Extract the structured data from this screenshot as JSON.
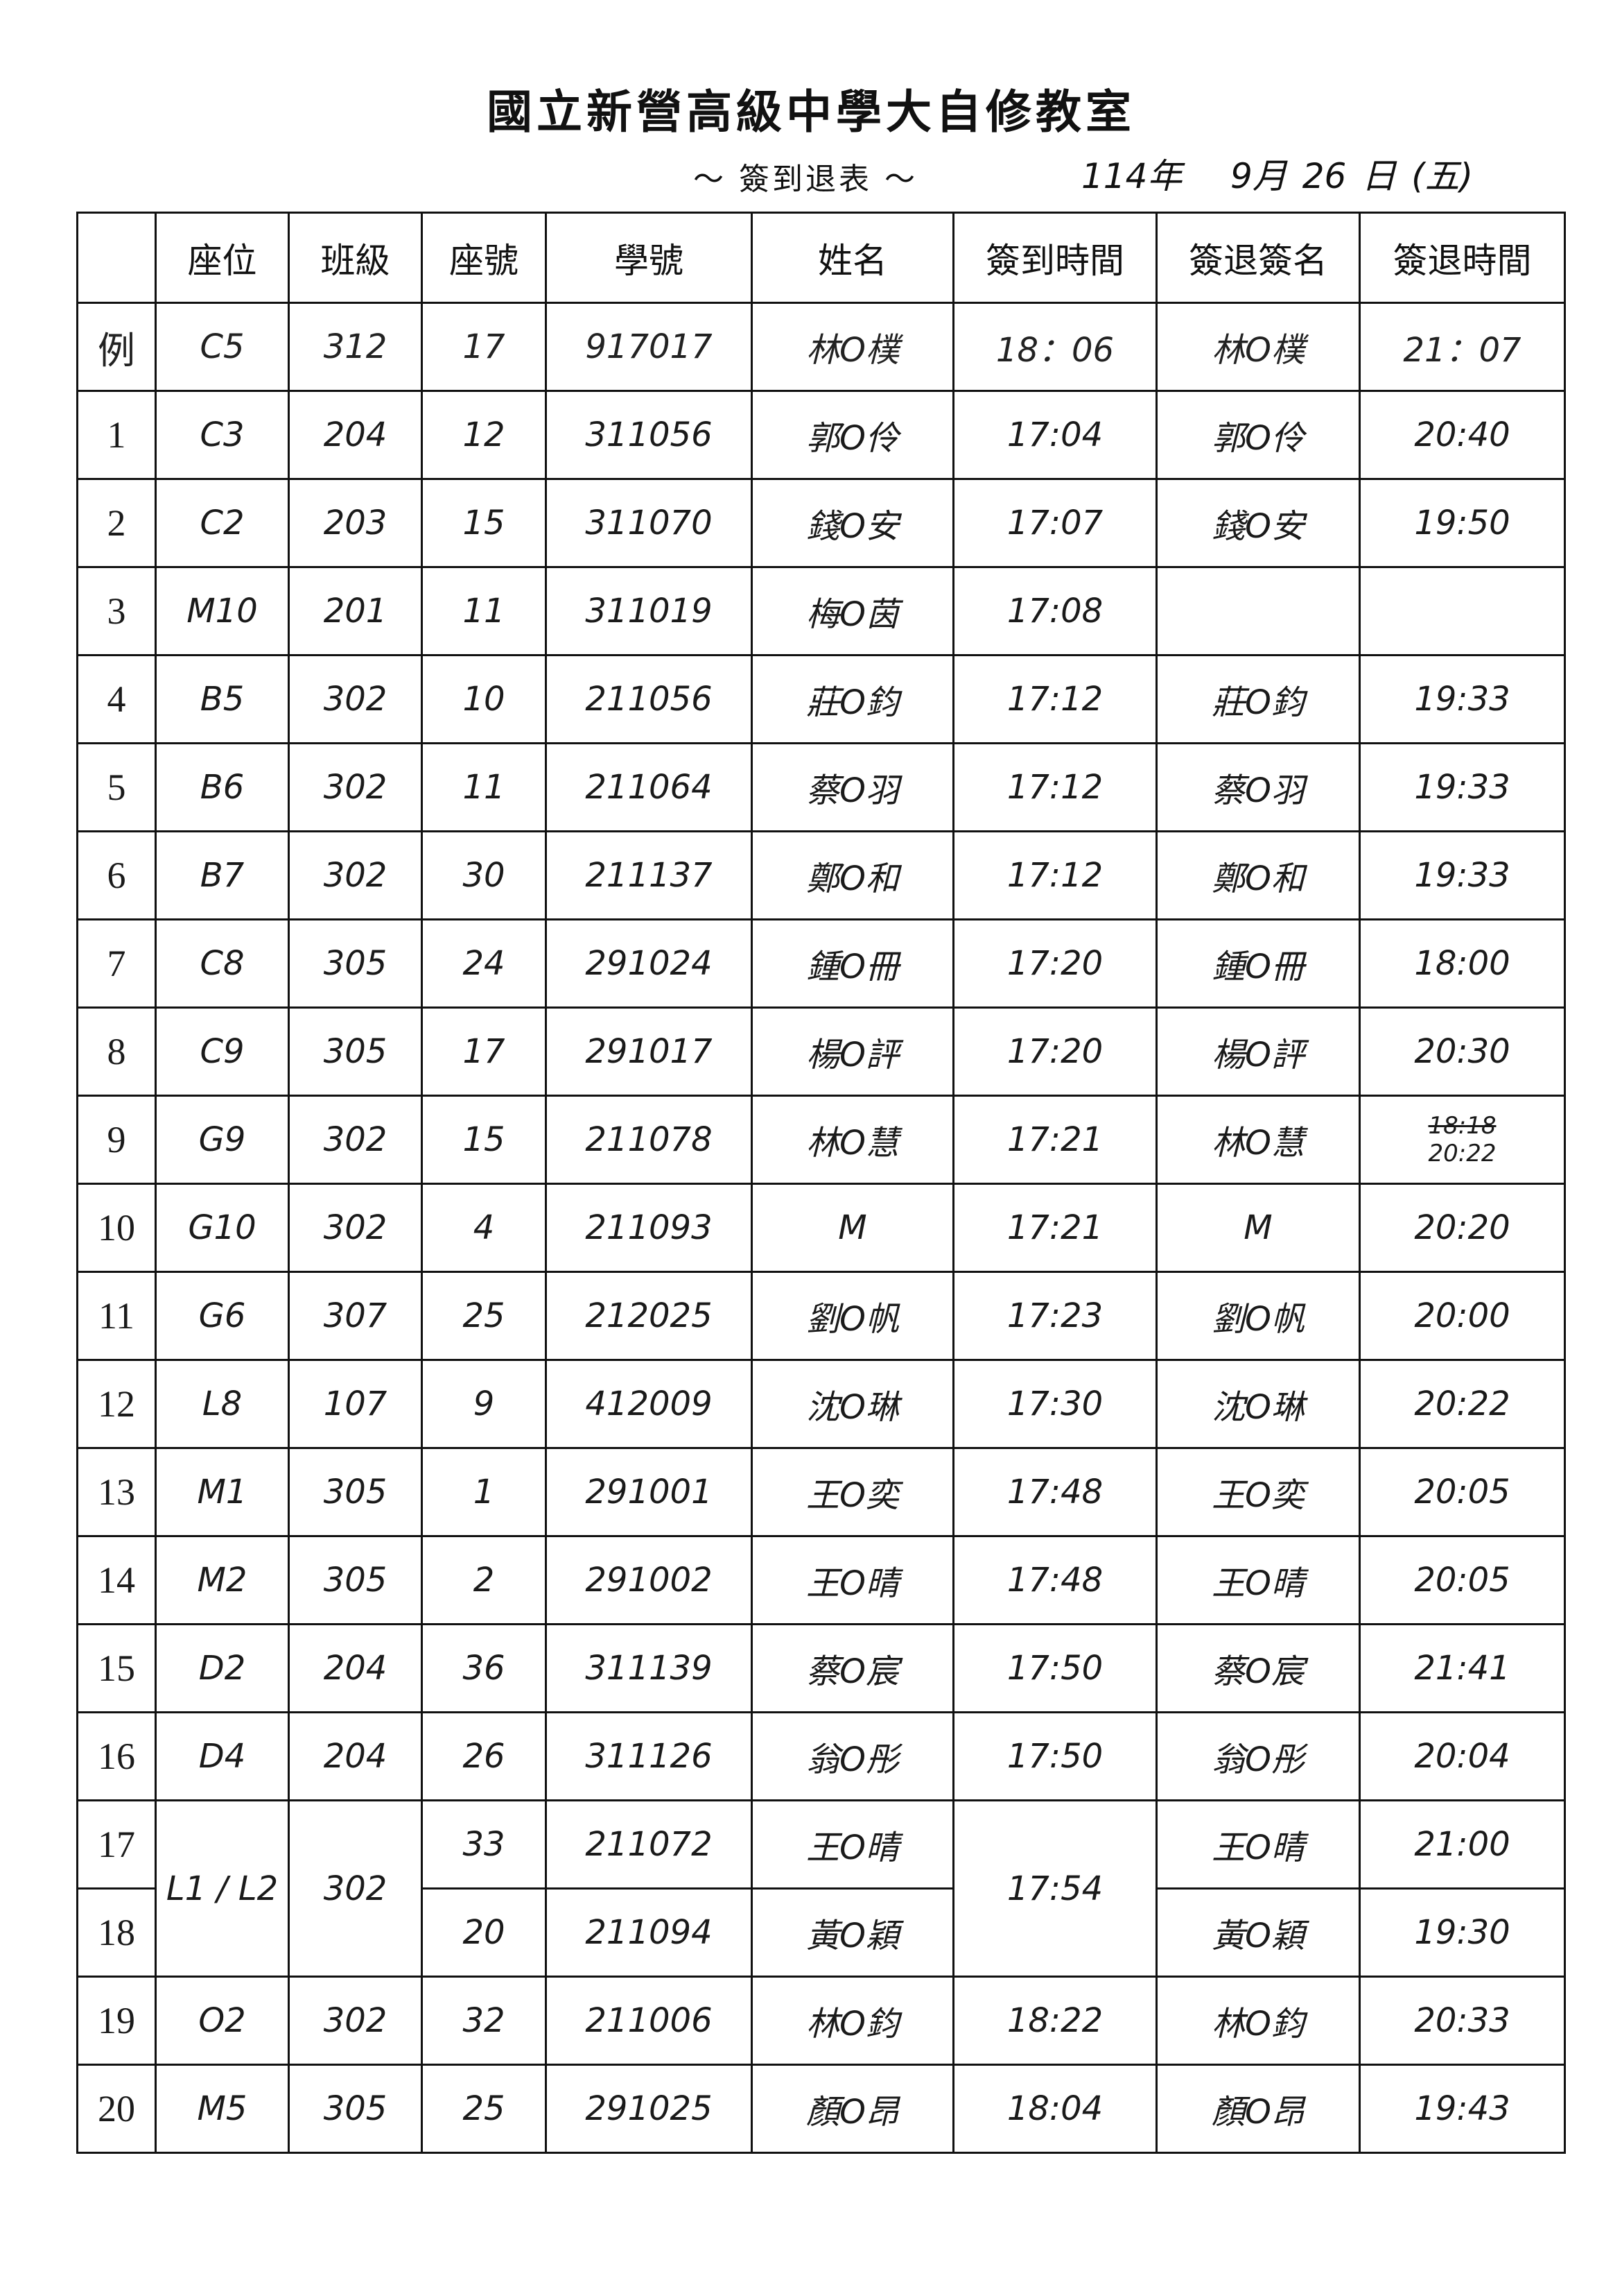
{
  "title": "國立新營高級中學大自修教室",
  "subtitle": "～ 簽到退表 ～",
  "date": {
    "year": "114年",
    "month": "9月",
    "day": "26",
    "day_label": "日",
    "weekday": "(五)"
  },
  "headers": [
    "",
    "座位",
    "班級",
    "座號",
    "學號",
    "姓名",
    "簽到時間",
    "簽退簽名",
    "簽退時間"
  ],
  "example": {
    "index": "例",
    "seat": "C5",
    "class": "312",
    "seat_no": "17",
    "student_id": "917017",
    "name": "林O樸",
    "sign_in": "18：06",
    "sign_out_name": "林O樸",
    "sign_out": "21：07"
  },
  "rows": [
    {
      "index": "1",
      "seat": "C3",
      "class": "204",
      "seat_no": "12",
      "student_id": "311056",
      "name": "郭O伶",
      "sign_in": "17:04",
      "sign_out_name": "郭O伶",
      "sign_out": "20:40"
    },
    {
      "index": "2",
      "seat": "C2",
      "class": "203",
      "seat_no": "15",
      "student_id": "311070",
      "name": "錢O安",
      "sign_in": "17:07",
      "sign_out_name": "錢O安",
      "sign_out": "19:50"
    },
    {
      "index": "3",
      "seat": "M10",
      "class": "201",
      "seat_no": "11",
      "student_id": "311019",
      "name": "梅O茵",
      "sign_in": "17:08",
      "sign_out_name": "",
      "sign_out": ""
    },
    {
      "index": "4",
      "seat": "B5",
      "class": "302",
      "seat_no": "10",
      "student_id": "211056",
      "name": "莊O鈞",
      "sign_in": "17:12",
      "sign_out_name": "莊O鈞",
      "sign_out": "19:33"
    },
    {
      "index": "5",
      "seat": "B6",
      "class": "302",
      "seat_no": "11",
      "student_id": "211064",
      "name": "蔡O羽",
      "sign_in": "17:12",
      "sign_out_name": "蔡O羽",
      "sign_out": "19:33"
    },
    {
      "index": "6",
      "seat": "B7",
      "class": "302",
      "seat_no": "30",
      "student_id": "211137",
      "name": "鄭O和",
      "sign_in": "17:12",
      "sign_out_name": "鄭O和",
      "sign_out": "19:33"
    },
    {
      "index": "7",
      "seat": "C8",
      "class": "305",
      "seat_no": "24",
      "student_id": "291024",
      "name": "鍾O冊",
      "sign_in": "17:20",
      "sign_out_name": "鍾O冊",
      "sign_out": "18:00"
    },
    {
      "index": "8",
      "seat": "C9",
      "class": "305",
      "seat_no": "17",
      "student_id": "291017",
      "name": "楊O評",
      "sign_in": "17:20",
      "sign_out_name": "楊O評",
      "sign_out": "20:30"
    },
    {
      "index": "9",
      "seat": "G9",
      "class": "302",
      "seat_no": "15",
      "student_id": "211078",
      "name": "林O慧",
      "sign_in": "17:21",
      "sign_out_name": "林O慧",
      "sign_out_struck": "18:18",
      "sign_out": "20:22"
    },
    {
      "index": "10",
      "seat": "G10",
      "class": "302",
      "seat_no": "4",
      "student_id": "211093",
      "name": "M",
      "sign_in": "17:21",
      "sign_out_name": "M",
      "sign_out": "20:20"
    },
    {
      "index": "11",
      "seat": "G6",
      "class": "307",
      "seat_no": "25",
      "student_id": "212025",
      "name": "劉O帆",
      "sign_in": "17:23",
      "sign_out_name": "劉O帆",
      "sign_out": "20:00"
    },
    {
      "index": "12",
      "seat": "L8",
      "class": "107",
      "seat_no": "9",
      "student_id": "412009",
      "name": "沈O琳",
      "sign_in": "17:30",
      "sign_out_name": "沈O琳",
      "sign_out": "20:22"
    },
    {
      "index": "13",
      "seat": "M1",
      "class": "305",
      "seat_no": "1",
      "student_id": "291001",
      "name": "王O奕",
      "sign_in": "17:48",
      "sign_out_name": "王O奕",
      "sign_out": "20:05"
    },
    {
      "index": "14",
      "seat": "M2",
      "class": "305",
      "seat_no": "2",
      "student_id": "291002",
      "name": "王O晴",
      "sign_in": "17:48",
      "sign_out_name": "王O晴",
      "sign_out": "20:05"
    },
    {
      "index": "15",
      "seat": "D2",
      "class": "204",
      "seat_no": "36",
      "student_id": "311139",
      "name": "蔡O宸",
      "sign_in": "17:50",
      "sign_out_name": "蔡O宸",
      "sign_out": "21:41"
    },
    {
      "index": "16",
      "seat": "D4",
      "class": "204",
      "seat_no": "26",
      "student_id": "311126",
      "name": "翁O彤",
      "sign_in": "17:50",
      "sign_out_name": "翁O彤",
      "sign_out": "20:04"
    },
    {
      "index": "17",
      "seat": "L1 / L2",
      "class": "302",
      "seat_no": "33",
      "student_id": "211072",
      "name": "王O晴",
      "sign_in": "17:54",
      "sign_out_name": "王O晴",
      "sign_out": "21:00"
    },
    {
      "index": "18",
      "seat_no": "20",
      "student_id": "211094",
      "name": "黃O穎",
      "sign_out_name": "黃O穎",
      "sign_out": "19:30"
    },
    {
      "index": "19",
      "seat": "O2",
      "class": "302",
      "seat_no": "32",
      "student_id": "211006",
      "name": "林O鈞",
      "sign_in": "18:22",
      "sign_out_name": "林O鈞",
      "sign_out": "20:33"
    },
    {
      "index": "20",
      "seat": "M5",
      "class": "305",
      "seat_no": "25",
      "student_id": "291025",
      "name": "顏O昂",
      "sign_in": "18:04",
      "sign_out_name": "顏O昂",
      "sign_out": "19:43"
    }
  ]
}
